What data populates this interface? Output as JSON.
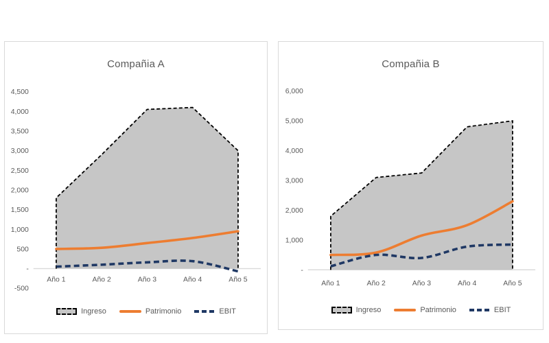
{
  "page": {
    "background": "#ffffff"
  },
  "colors": {
    "text": "#595959",
    "axis_line": "#d9d9d9",
    "panel_border": "#d9d9d9"
  },
  "chart_data": [
    {
      "type": "area+line combo",
      "title": "Compañia A",
      "categories": [
        "Año 1",
        "Año 2",
        "Año 3",
        "Año 4",
        "Año 5"
      ],
      "ylim": [
        -500,
        4500
      ],
      "y_tick_step": 500,
      "y_tick_labels": [
        "-500",
        "-",
        "500",
        "1,000",
        "1,500",
        "2,000",
        "2,500",
        "3,000",
        "3,500",
        "4,000",
        "4,500"
      ],
      "xlabel": "",
      "ylabel": "",
      "grid": false,
      "legend_position": "bottom",
      "series": [
        {
          "name": "Ingreso",
          "style": "area",
          "fill": "#c6c6c6",
          "border": "#000000",
          "border_style": "dashed",
          "values": [
            1800,
            2900,
            4050,
            4100,
            3000
          ]
        },
        {
          "name": "Patrimonio",
          "style": "line-solid",
          "color": "#ED7D31",
          "values": [
            500,
            530,
            650,
            780,
            950
          ]
        },
        {
          "name": "EBIT",
          "style": "line-dashed",
          "color": "#1F3864",
          "values": [
            50,
            100,
            160,
            190,
            -70
          ]
        }
      ]
    },
    {
      "type": "area+line combo",
      "title": "Compañia B",
      "categories": [
        "Año 1",
        "Año 2",
        "Año 3",
        "Año 4",
        "Año 5"
      ],
      "ylim": [
        0,
        6000
      ],
      "y_tick_step": 1000,
      "y_tick_labels": [
        "-",
        "1,000",
        "2,000",
        "3,000",
        "4,000",
        "5,000",
        "6,000"
      ],
      "xlabel": "",
      "ylabel": "",
      "grid": false,
      "legend_position": "bottom",
      "series": [
        {
          "name": "Ingreso",
          "style": "area",
          "fill": "#c6c6c6",
          "border": "#000000",
          "border_style": "dashed",
          "values": [
            1800,
            3100,
            3250,
            4800,
            5000
          ]
        },
        {
          "name": "Patrimonio",
          "style": "line-solid",
          "color": "#ED7D31",
          "values": [
            500,
            580,
            1150,
            1500,
            2300
          ]
        },
        {
          "name": "EBIT",
          "style": "line-dashed",
          "color": "#1F3864",
          "values": [
            120,
            500,
            400,
            780,
            850
          ]
        }
      ]
    }
  ]
}
